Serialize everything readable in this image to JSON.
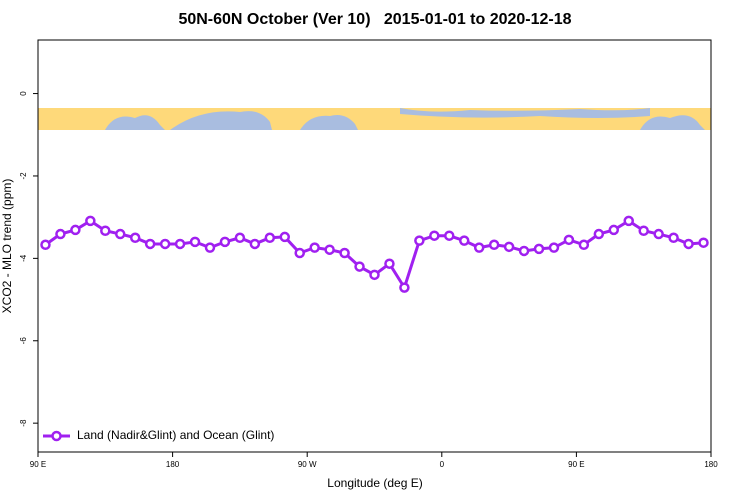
{
  "chart_data": {
    "type": "line",
    "title": "50N-60N October (Ver 10)   2015-01-01 to 2020-12-18",
    "x_label": "Longitude (deg E)",
    "y_label": "XCO2 - MLO trend (ppm)",
    "xlim": [
      90,
      540
    ],
    "ylim": [
      -8.7,
      1.3
    ],
    "xticks": [
      {
        "value": 90,
        "label": "90 E"
      },
      {
        "value": 180,
        "label": "180"
      },
      {
        "value": 270,
        "label": "90 W"
      },
      {
        "value": 360,
        "label": "0"
      },
      {
        "value": 450,
        "label": "90 E"
      },
      {
        "value": 540,
        "label": "180"
      }
    ],
    "yticks": [
      -8,
      -6,
      -4,
      -2,
      0
    ],
    "grid": false,
    "legend_position": "lower left",
    "x": [
      95,
      105,
      115,
      125,
      135,
      145,
      155,
      165,
      175,
      185,
      195,
      205,
      215,
      225,
      235,
      245,
      255,
      265,
      275,
      285,
      295,
      305,
      315,
      325,
      335,
      345,
      355,
      365,
      375,
      385,
      395,
      405,
      415,
      425,
      435,
      445,
      455,
      465,
      475,
      485,
      495,
      505,
      515,
      525,
      535
    ],
    "series": [
      {
        "name": "Land (Nadir&Glint) and Ocean (Glint)",
        "color": "#a020f0",
        "values": [
          -3.67,
          -3.41,
          -3.31,
          -3.09,
          -3.33,
          -3.41,
          -3.5,
          -3.65,
          -3.65,
          -3.65,
          -3.6,
          -3.74,
          -3.6,
          -3.5,
          -3.65,
          -3.5,
          -3.48,
          -3.87,
          -3.74,
          -3.79,
          -3.87,
          -4.2,
          -4.4,
          -4.13,
          -4.71,
          -3.57,
          -3.45,
          -3.45,
          -3.57,
          -3.74,
          -3.67,
          -3.72,
          -3.82,
          -3.77,
          -3.74,
          -3.55,
          -3.67,
          -3.41,
          -3.31,
          -3.09,
          -3.33,
          -3.41,
          -3.5,
          -3.65,
          -3.62
        ]
      }
    ]
  }
}
